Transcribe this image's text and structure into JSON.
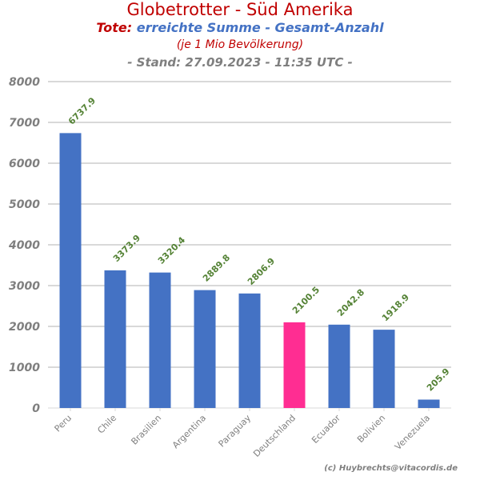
{
  "header": {
    "title": "Globetrotter - Süd Amerika",
    "subtitle_prefix": "Tote:",
    "subtitle_main": "erreichte Summe - Gesamt-Anzahl",
    "subtitle_2": "(je 1 Mio Bevölkerung)",
    "subtitle_3": "- Stand: 27.09.2023 - 11:35 UTC -"
  },
  "footer": {
    "credit": "(c) Huybrechts@vitacordis.de"
  },
  "colors": {
    "bar": "#4472c4",
    "highlight": "#ff2d92",
    "label": "#548235",
    "grid": "#d9d9d9",
    "axis_text": "#7f7f7f"
  },
  "chart_data": {
    "type": "bar",
    "title": "Globetrotter - Süd Amerika",
    "xlabel": "",
    "ylabel": "",
    "categories": [
      "Peru",
      "Chile",
      "Brasilien",
      "Argentina",
      "Paraguay",
      "Deutschland",
      "Ecuador",
      "Bolivien",
      "Venezuela"
    ],
    "values": [
      6737.9,
      3373.9,
      3320.4,
      2889.8,
      2806.9,
      2100.5,
      2042.8,
      1918.9,
      205.9
    ],
    "value_labels": [
      "6737.9",
      "3373.9",
      "3320.4",
      "2889.8",
      "2806.9",
      "2100.5",
      "2042.8",
      "1918.9",
      "205.9"
    ],
    "highlight_category": "Deutschland",
    "ylim": [
      0,
      8000
    ],
    "yticks": [
      0,
      1000,
      2000,
      3000,
      4000,
      5000,
      6000,
      7000,
      8000
    ],
    "ytick_labels": [
      "0",
      "1000",
      "2000",
      "3000",
      "4000",
      "5000",
      "6000",
      "7000",
      "8000"
    ],
    "grid": true,
    "legend": "none"
  }
}
